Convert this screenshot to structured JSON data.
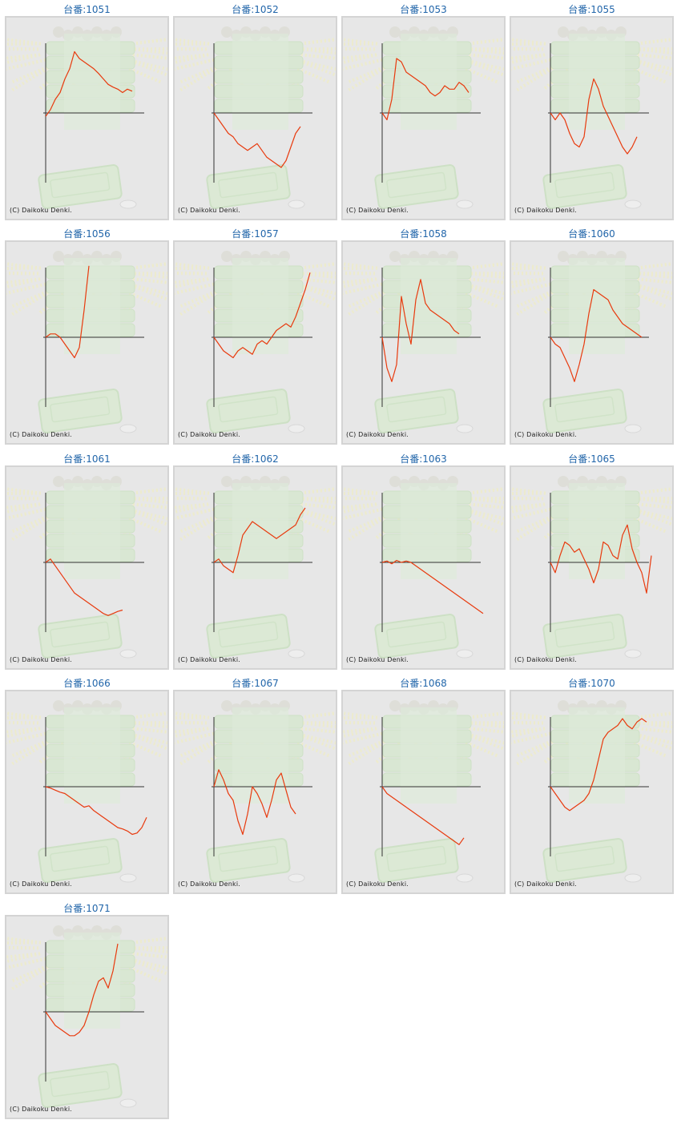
{
  "colors": {
    "title": "#2266aa",
    "line": "#e83a0e",
    "axis": "#333333",
    "panel": "#e7e7e7",
    "frame": "#d4d4d4"
  },
  "title_prefix": "台番:",
  "copyright": "(C) Daikoku Denki.",
  "chart_data": [
    {
      "type": "line",
      "title": "台番:1051",
      "x": [
        0,
        5,
        10,
        15,
        20,
        25,
        30,
        35,
        40,
        45,
        50,
        55,
        60,
        65,
        70,
        75,
        80,
        85,
        90
      ],
      "y": [
        -0.05,
        0.05,
        0.2,
        0.3,
        0.5,
        0.65,
        0.9,
        0.8,
        0.75,
        0.7,
        0.65,
        0.58,
        0.5,
        0.42,
        0.38,
        0.35,
        0.3,
        0.35,
        0.32
      ]
    },
    {
      "type": "line",
      "title": "台番:1052",
      "x": [
        0,
        5,
        10,
        15,
        20,
        25,
        30,
        35,
        40,
        45,
        50,
        55,
        60,
        65,
        70,
        75,
        80,
        85,
        90
      ],
      "y": [
        0,
        -0.1,
        -0.2,
        -0.3,
        -0.35,
        -0.45,
        -0.5,
        -0.55,
        -0.5,
        -0.45,
        -0.55,
        -0.65,
        -0.7,
        -0.75,
        -0.8,
        -0.7,
        -0.5,
        -0.3,
        -0.2
      ]
    },
    {
      "type": "line",
      "title": "台番:1053",
      "x": [
        0,
        5,
        10,
        15,
        20,
        25,
        30,
        35,
        40,
        45,
        50,
        55,
        60,
        65,
        70,
        75,
        80,
        85,
        90
      ],
      "y": [
        0,
        -0.1,
        0.2,
        0.8,
        0.75,
        0.6,
        0.55,
        0.5,
        0.45,
        0.4,
        0.3,
        0.25,
        0.3,
        0.4,
        0.35,
        0.35,
        0.45,
        0.4,
        0.3
      ]
    },
    {
      "type": "line",
      "title": "台番:1055",
      "x": [
        0,
        5,
        10,
        15,
        20,
        25,
        30,
        35,
        40,
        45,
        50,
        55,
        60,
        65,
        70,
        75,
        80,
        85,
        90
      ],
      "y": [
        0,
        -0.1,
        0,
        -0.1,
        -0.3,
        -0.45,
        -0.5,
        -0.35,
        0.2,
        0.5,
        0.35,
        0.1,
        -0.05,
        -0.2,
        -0.35,
        -0.5,
        -0.6,
        -0.5,
        -0.35
      ]
    },
    {
      "type": "line",
      "title": "台番:1056",
      "x": [
        0,
        5,
        10,
        15,
        20,
        25,
        30,
        35,
        40,
        45
      ],
      "y": [
        0,
        0.05,
        0.05,
        0,
        -0.1,
        -0.2,
        -0.3,
        -0.15,
        0.4,
        1.05
      ]
    },
    {
      "type": "line",
      "title": "台番:1057",
      "x": [
        0,
        5,
        10,
        15,
        20,
        25,
        30,
        35,
        40,
        45,
        50,
        55,
        60,
        65,
        70,
        75,
        80,
        85,
        90,
        95,
        100
      ],
      "y": [
        0,
        -0.1,
        -0.2,
        -0.25,
        -0.3,
        -0.2,
        -0.15,
        -0.2,
        -0.25,
        -0.1,
        -0.05,
        -0.1,
        0,
        0.1,
        0.15,
        0.2,
        0.15,
        0.3,
        0.5,
        0.7,
        0.95
      ]
    },
    {
      "type": "line",
      "title": "台番:1058",
      "x": [
        0,
        5,
        10,
        15,
        20,
        25,
        30,
        35,
        40,
        45,
        50,
        55,
        60,
        65,
        70,
        75,
        80
      ],
      "y": [
        0,
        -0.45,
        -0.65,
        -0.4,
        0.6,
        0.2,
        -0.1,
        0.55,
        0.85,
        0.5,
        0.4,
        0.35,
        0.3,
        0.25,
        0.2,
        0.1,
        0.05
      ]
    },
    {
      "type": "line",
      "title": "台番:1060",
      "x": [
        0,
        5,
        10,
        15,
        20,
        25,
        30,
        35,
        40,
        45,
        50,
        55,
        60,
        65,
        70,
        75,
        80,
        85,
        90,
        95
      ],
      "y": [
        0,
        -0.1,
        -0.15,
        -0.3,
        -0.45,
        -0.65,
        -0.4,
        -0.1,
        0.35,
        0.7,
        0.65,
        0.6,
        0.55,
        0.4,
        0.3,
        0.2,
        0.15,
        0.1,
        0.05,
        0
      ]
    },
    {
      "type": "line",
      "title": "台番:1061",
      "x": [
        0,
        5,
        10,
        15,
        20,
        25,
        30,
        35,
        40,
        45,
        50,
        55,
        60,
        65,
        70,
        75,
        80
      ],
      "y": [
        0,
        0.05,
        -0.05,
        -0.15,
        -0.25,
        -0.35,
        -0.45,
        -0.5,
        -0.55,
        -0.6,
        -0.65,
        -0.7,
        -0.75,
        -0.78,
        -0.75,
        -0.72,
        -0.7
      ]
    },
    {
      "type": "line",
      "title": "台番:1062",
      "x": [
        0,
        5,
        10,
        15,
        20,
        25,
        30,
        35,
        40,
        45,
        50,
        55,
        60,
        65,
        70,
        75,
        80,
        85,
        90,
        95
      ],
      "y": [
        0,
        0.05,
        -0.05,
        -0.1,
        -0.15,
        0.1,
        0.4,
        0.5,
        0.6,
        0.55,
        0.5,
        0.45,
        0.4,
        0.35,
        0.4,
        0.45,
        0.5,
        0.55,
        0.7,
        0.8
      ]
    },
    {
      "type": "line",
      "title": "台番:1063",
      "x": [
        0,
        5,
        10,
        15,
        20,
        25,
        30,
        35,
        40,
        45,
        50,
        55,
        60,
        65,
        70,
        75,
        80,
        85,
        90,
        95,
        100,
        105
      ],
      "y": [
        0,
        0.02,
        -0.02,
        0.03,
        0,
        0.02,
        0,
        -0.05,
        -0.1,
        -0.15,
        -0.2,
        -0.25,
        -0.3,
        -0.35,
        -0.4,
        -0.45,
        -0.5,
        -0.55,
        -0.6,
        -0.65,
        -0.7,
        -0.75
      ]
    },
    {
      "type": "line",
      "title": "台番:1065",
      "x": [
        0,
        5,
        10,
        15,
        20,
        25,
        30,
        35,
        40,
        45,
        50,
        55,
        60,
        65,
        70,
        75,
        80,
        85,
        90,
        95,
        100,
        105
      ],
      "y": [
        0,
        -0.15,
        0.1,
        0.3,
        0.25,
        0.15,
        0.2,
        0.05,
        -0.1,
        -0.3,
        -0.1,
        0.3,
        0.25,
        0.1,
        0.05,
        0.4,
        0.55,
        0.2,
        0,
        -0.15,
        -0.45,
        0.1
      ]
    },
    {
      "type": "line",
      "title": "台番:1066",
      "x": [
        0,
        5,
        10,
        15,
        20,
        25,
        30,
        35,
        40,
        45,
        50,
        55,
        60,
        65,
        70,
        75,
        80,
        85,
        90,
        95,
        100,
        105
      ],
      "y": [
        0,
        -0.02,
        -0.05,
        -0.08,
        -0.1,
        -0.15,
        -0.2,
        -0.25,
        -0.3,
        -0.28,
        -0.35,
        -0.4,
        -0.45,
        -0.5,
        -0.55,
        -0.6,
        -0.62,
        -0.65,
        -0.7,
        -0.68,
        -0.6,
        -0.45
      ]
    },
    {
      "type": "line",
      "title": "台番:1067",
      "x": [
        0,
        5,
        10,
        15,
        20,
        25,
        30,
        35,
        40,
        45,
        50,
        55,
        60,
        65,
        70,
        75,
        80,
        85
      ],
      "y": [
        0,
        0.25,
        0.1,
        -0.1,
        -0.2,
        -0.5,
        -0.7,
        -0.4,
        0,
        -0.1,
        -0.25,
        -0.45,
        -0.2,
        0.1,
        0.2,
        -0.05,
        -0.3,
        -0.4
      ]
    },
    {
      "type": "line",
      "title": "台番:1068",
      "x": [
        0,
        5,
        10,
        15,
        20,
        25,
        30,
        35,
        40,
        45,
        50,
        55,
        60,
        65,
        70,
        75,
        80,
        85
      ],
      "y": [
        0,
        -0.1,
        -0.15,
        -0.2,
        -0.25,
        -0.3,
        -0.35,
        -0.4,
        -0.45,
        -0.5,
        -0.55,
        -0.6,
        -0.65,
        -0.7,
        -0.75,
        -0.8,
        -0.85,
        -0.75
      ]
    },
    {
      "type": "line",
      "title": "台番:1070",
      "x": [
        0,
        5,
        10,
        15,
        20,
        25,
        30,
        35,
        40,
        45,
        50,
        55,
        60,
        65,
        70,
        75,
        80,
        85,
        90,
        95,
        100
      ],
      "y": [
        0,
        -0.1,
        -0.2,
        -0.3,
        -0.35,
        -0.3,
        -0.25,
        -0.2,
        -0.1,
        0.1,
        0.4,
        0.7,
        0.8,
        0.85,
        0.9,
        1,
        0.9,
        0.85,
        0.95,
        1,
        0.95
      ]
    },
    {
      "type": "line",
      "title": "台番:1071",
      "x": [
        0,
        5,
        10,
        15,
        20,
        25,
        30,
        35,
        40,
        45,
        50,
        55,
        60,
        65,
        70,
        75
      ],
      "y": [
        0,
        -0.1,
        -0.2,
        -0.25,
        -0.3,
        -0.35,
        -0.35,
        -0.3,
        -0.2,
        0,
        0.25,
        0.45,
        0.5,
        0.35,
        0.6,
        1.0
      ]
    }
  ]
}
